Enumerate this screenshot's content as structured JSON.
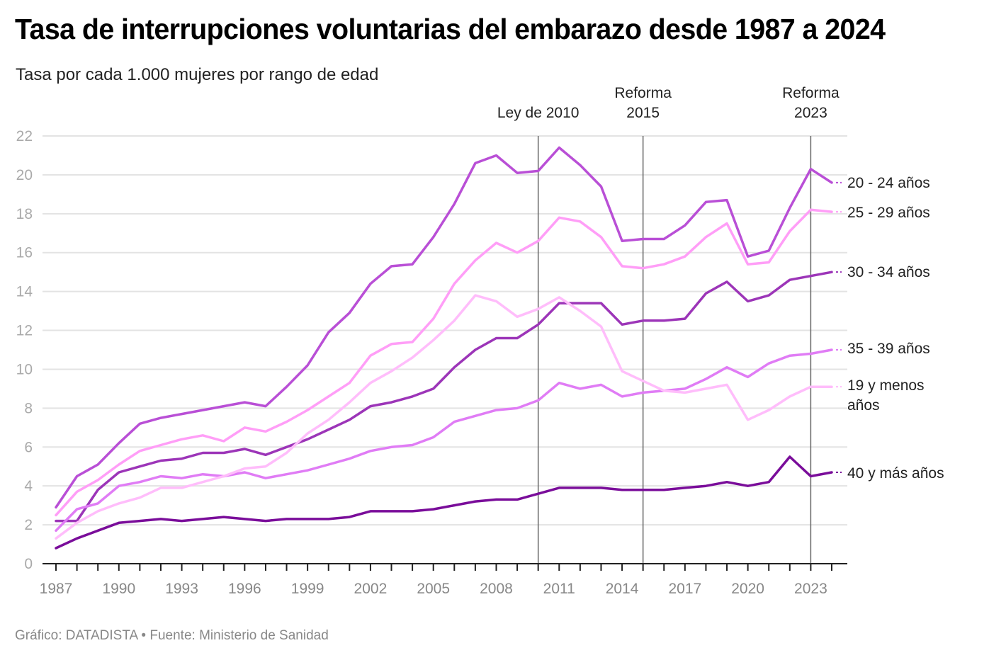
{
  "title": "Tasa de interrupciones voluntarias del embarazo desde 1987 a 2024",
  "subtitle": "Tasa por cada 1.000 mujeres por rango de edad",
  "footer": "Gráfico: DATADISTA • Fuente: Ministerio de Sanidad",
  "chart_data": {
    "type": "line",
    "title": "Tasa de interrupciones voluntarias del embarazo desde 1987 a 2024",
    "subtitle": "Tasa por cada 1.000 mujeres por rango de edad",
    "xlabel": "",
    "ylabel": "",
    "ylim": [
      0,
      22
    ],
    "yticks": [
      0,
      2,
      4,
      6,
      8,
      10,
      12,
      14,
      16,
      18,
      20,
      22
    ],
    "xlim": [
      1987,
      2024
    ],
    "xtick_labels": [
      "1987",
      "1990",
      "1993",
      "1996",
      "1999",
      "2002",
      "2005",
      "2008",
      "2011",
      "2014",
      "2017",
      "2020",
      "2023"
    ],
    "grid": "horizontal",
    "legend": "direct labels right",
    "x": [
      1987,
      1988,
      1989,
      1990,
      1991,
      1992,
      1993,
      1994,
      1995,
      1996,
      1997,
      1998,
      1999,
      2000,
      2001,
      2002,
      2003,
      2004,
      2005,
      2006,
      2007,
      2008,
      2009,
      2010,
      2011,
      2012,
      2013,
      2014,
      2015,
      2016,
      2017,
      2018,
      2019,
      2020,
      2021,
      2022,
      2023,
      2024
    ],
    "series": [
      {
        "name": "20 - 24 años",
        "color": "#b94fd6",
        "label_lines": [
          "20 - 24 años"
        ],
        "values": [
          2.9,
          4.5,
          5.1,
          6.2,
          7.2,
          7.5,
          7.7,
          7.9,
          8.1,
          8.3,
          8.1,
          9.1,
          10.2,
          11.9,
          12.9,
          14.4,
          15.3,
          15.4,
          16.8,
          18.5,
          20.6,
          21.0,
          20.1,
          20.2,
          21.4,
          20.5,
          19.4,
          16.6,
          16.7,
          16.7,
          17.4,
          18.6,
          18.7,
          15.8,
          16.1,
          18.3,
          20.3,
          19.6
        ]
      },
      {
        "name": "25 - 29 años",
        "color": "#ff9ef7",
        "label_lines": [
          "25 - 29 años"
        ],
        "values": [
          2.5,
          3.7,
          4.3,
          5.1,
          5.8,
          6.1,
          6.4,
          6.6,
          6.3,
          7.0,
          6.8,
          7.3,
          7.9,
          8.6,
          9.3,
          10.7,
          11.3,
          11.4,
          12.6,
          14.4,
          15.6,
          16.5,
          16.0,
          16.6,
          17.8,
          17.6,
          16.8,
          15.3,
          15.2,
          15.4,
          15.8,
          16.8,
          17.5,
          15.4,
          15.5,
          17.1,
          18.2,
          18.1
        ]
      },
      {
        "name": "30 - 34 años",
        "color": "#9c35b8",
        "label_lines": [
          "30 - 34 años"
        ],
        "values": [
          2.2,
          2.2,
          3.8,
          4.7,
          5.0,
          5.3,
          5.4,
          5.7,
          5.7,
          5.9,
          5.6,
          6.0,
          6.4,
          6.9,
          7.4,
          8.1,
          8.3,
          8.6,
          9.0,
          10.1,
          11.0,
          11.6,
          11.6,
          12.3,
          13.4,
          13.4,
          13.4,
          12.3,
          12.5,
          12.5,
          12.6,
          13.9,
          14.5,
          13.5,
          13.8,
          14.6,
          14.8,
          15.0
        ]
      },
      {
        "name": "35 - 39 años",
        "color": "#e07cf5",
        "label_lines": [
          "35 - 39 años"
        ],
        "values": [
          1.7,
          2.8,
          3.1,
          4.0,
          4.2,
          4.5,
          4.4,
          4.6,
          4.5,
          4.7,
          4.4,
          4.6,
          4.8,
          5.1,
          5.4,
          5.8,
          6.0,
          6.1,
          6.5,
          7.3,
          7.6,
          7.9,
          8.0,
          8.4,
          9.3,
          9.0,
          9.2,
          8.6,
          8.8,
          8.9,
          9.0,
          9.5,
          10.1,
          9.6,
          10.3,
          10.7,
          10.8,
          11.0
        ]
      },
      {
        "name": "19 y menos años",
        "color": "#ffbdfb",
        "label_lines": [
          "19 y menos",
          "años"
        ],
        "values": [
          1.3,
          2.1,
          2.7,
          3.1,
          3.4,
          3.9,
          3.9,
          4.2,
          4.5,
          4.9,
          5.0,
          5.7,
          6.7,
          7.4,
          8.3,
          9.3,
          9.9,
          10.6,
          11.5,
          12.5,
          13.8,
          13.5,
          12.7,
          13.1,
          13.7,
          13.0,
          12.2,
          9.9,
          9.4,
          8.9,
          8.8,
          9.0,
          9.2,
          7.4,
          7.9,
          8.6,
          9.1,
          9.1
        ]
      },
      {
        "name": "40 y más años",
        "color": "#7a0d9a",
        "label_lines": [
          "40 y más años"
        ],
        "values": [
          0.8,
          1.3,
          1.7,
          2.1,
          2.2,
          2.3,
          2.2,
          2.3,
          2.4,
          2.3,
          2.2,
          2.3,
          2.3,
          2.3,
          2.4,
          2.7,
          2.7,
          2.7,
          2.8,
          3.0,
          3.2,
          3.3,
          3.3,
          3.6,
          3.9,
          3.9,
          3.9,
          3.8,
          3.8,
          3.8,
          3.9,
          4.0,
          4.2,
          4.0,
          4.2,
          5.5,
          4.5,
          4.7
        ]
      }
    ],
    "annotations": [
      {
        "x": 2010,
        "lines": [
          "Ley de 2010"
        ]
      },
      {
        "x": 2015,
        "lines": [
          "Reforma",
          "2015"
        ]
      },
      {
        "x": 2023,
        "lines": [
          "Reforma",
          "2023"
        ]
      }
    ]
  }
}
